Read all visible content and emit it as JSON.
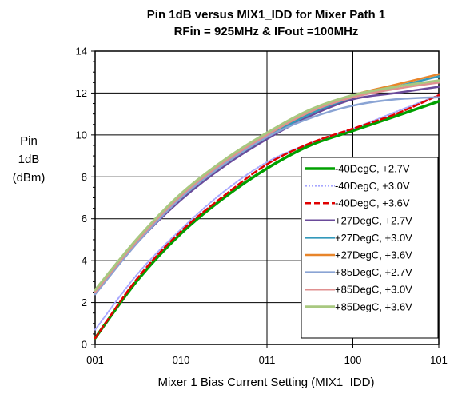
{
  "chart_data": {
    "type": "line",
    "title": "Pin 1dB versus MIX1_IDD for Mixer Path 1",
    "subtitle": "RFin = 925MHz & IFout =100MHz",
    "xlabel": "Mixer 1 Bias Current Setting (MIX1_IDD)",
    "ylabel_lines": [
      "Pin",
      "1dB",
      "(dBm)"
    ],
    "categories": [
      "001",
      "010",
      "011",
      "100",
      "101"
    ],
    "xlim": [
      0,
      4
    ],
    "ylim": [
      0,
      14
    ],
    "yticks": [
      "0",
      "2",
      "4",
      "6",
      "8",
      "10",
      "12",
      "14"
    ],
    "grid": true,
    "legend_position": "bottom-right",
    "series": [
      {
        "name": "-40DegC, +2.7V",
        "color": "#00a000",
        "width": 3.5,
        "dash": "",
        "x": [
          0,
          0.5,
          1,
          1.5,
          2,
          2.5,
          3,
          3.5,
          4
        ],
        "y": [
          0.3,
          3.1,
          5.3,
          7.0,
          8.4,
          9.5,
          10.2,
          10.9,
          11.6
        ]
      },
      {
        "name": "-40DegC, +3.0V",
        "color": "#a6a6ff",
        "width": 2,
        "dash": "2 2",
        "x": [
          0,
          0.5,
          1,
          1.5,
          2,
          2.5,
          3,
          3.5,
          4
        ],
        "y": [
          0.7,
          3.4,
          5.5,
          7.3,
          8.7,
          9.6,
          10.3,
          11.1,
          11.9
        ]
      },
      {
        "name": "-40DegC, +3.6V",
        "color": "#e00000",
        "width": 2.5,
        "dash": "7 4",
        "x": [
          0,
          0.5,
          1,
          1.5,
          2,
          2.5,
          3,
          3.5,
          4
        ],
        "y": [
          0.3,
          3.2,
          5.4,
          7.1,
          8.6,
          9.6,
          10.3,
          11.0,
          11.9
        ]
      },
      {
        "name": "+27DegC, +2.7V",
        "color": "#6a4a9a",
        "width": 2.5,
        "dash": "",
        "x": [
          0,
          0.5,
          1,
          1.5,
          2,
          2.5,
          3,
          3.5,
          4
        ],
        "y": [
          2.4,
          4.9,
          6.9,
          8.5,
          9.8,
          10.9,
          11.7,
          12.0,
          12.3
        ]
      },
      {
        "name": "+27DegC, +3.0V",
        "color": "#3399bb",
        "width": 2.5,
        "dash": "",
        "x": [
          0,
          0.5,
          1,
          1.5,
          2,
          2.5,
          3,
          3.5,
          4
        ],
        "y": [
          2.5,
          5.0,
          7.0,
          8.6,
          9.9,
          11.0,
          11.8,
          12.3,
          12.8
        ]
      },
      {
        "name": "+27DegC, +3.6V",
        "color": "#e8852a",
        "width": 2.5,
        "dash": "",
        "x": [
          0,
          0.5,
          1,
          1.5,
          2,
          2.5,
          3,
          3.5,
          4
        ],
        "y": [
          2.5,
          5.0,
          7.1,
          8.7,
          10.0,
          11.1,
          11.9,
          12.4,
          12.9
        ]
      },
      {
        "name": "+85DegC, +2.7V",
        "color": "#8aa4d4",
        "width": 2.5,
        "dash": "",
        "x": [
          0,
          0.5,
          1,
          1.5,
          2,
          2.5,
          3,
          3.5,
          4
        ],
        "y": [
          2.4,
          4.9,
          7.0,
          8.6,
          9.9,
          10.8,
          11.4,
          11.7,
          11.8
        ]
      },
      {
        "name": "+85DegC, +3.0V",
        "color": "#e09090",
        "width": 2.5,
        "dash": "",
        "x": [
          0,
          0.5,
          1,
          1.5,
          2,
          2.5,
          3,
          3.5,
          4
        ],
        "y": [
          2.5,
          5.0,
          7.1,
          8.7,
          10.0,
          11.1,
          11.8,
          12.2,
          12.5
        ]
      },
      {
        "name": "+85DegC, +3.6V",
        "color": "#a8c880",
        "width": 3,
        "dash": "",
        "x": [
          0,
          0.5,
          1,
          1.5,
          2,
          2.5,
          3,
          3.5,
          4
        ],
        "y": [
          2.6,
          5.1,
          7.2,
          8.8,
          10.1,
          11.2,
          11.9,
          12.3,
          12.6
        ]
      }
    ]
  }
}
